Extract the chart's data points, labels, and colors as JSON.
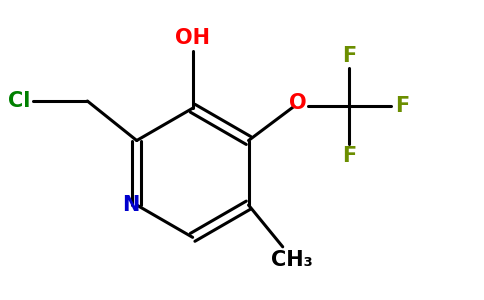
{
  "background_color": "#ffffff",
  "bond_color": "#000000",
  "N_color": "#0000cd",
  "O_color": "#ff0000",
  "Cl_color": "#008000",
  "F_color": "#6b8e00",
  "figsize": [
    4.84,
    3.0
  ],
  "dpi": 100,
  "xlim": [
    -0.5,
    5.8
  ],
  "ylim": [
    -0.3,
    3.5
  ]
}
